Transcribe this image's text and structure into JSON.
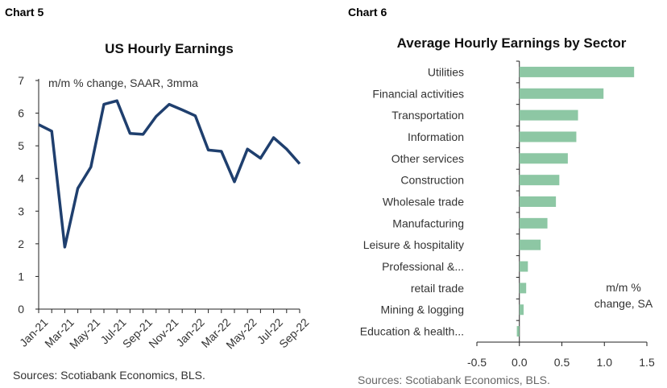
{
  "left": {
    "heading": "Chart 5",
    "source": "Sources: Scotiabank Economics, BLS."
  },
  "right": {
    "heading": "Chart 6",
    "source": "Sources: Scotiabank Economics, BLS."
  },
  "colors": {
    "line": "#1f3f6e",
    "bar": "#8dc7a4",
    "axis": "#222222"
  },
  "chart_data": [
    {
      "type": "line",
      "title": "US Hourly Earnings",
      "annotation": "m/m % change, SAAR, 3mma",
      "ylim": [
        0,
        7
      ],
      "yticks": [
        "0",
        "1",
        "2",
        "3",
        "4",
        "5",
        "6",
        "7"
      ],
      "x_tick_labels": [
        "Jan-21",
        "Mar-21",
        "May-21",
        "Jul-21",
        "Sep-21",
        "Nov-21",
        "Jan-22",
        "Mar-22",
        "May-22",
        "Jul-22",
        "Sep-22"
      ],
      "x": [
        "Jan-21",
        "Feb-21",
        "Mar-21",
        "Apr-21",
        "May-21",
        "Jun-21",
        "Jul-21",
        "Aug-21",
        "Sep-21",
        "Oct-21",
        "Nov-21",
        "Dec-21",
        "Jan-22",
        "Feb-22",
        "Mar-22",
        "Apr-22",
        "May-22",
        "Jun-22",
        "Jul-22",
        "Aug-22",
        "Sep-22"
      ],
      "series": [
        {
          "values": [
            5.65,
            5.45,
            1.9,
            3.7,
            4.35,
            6.27,
            6.38,
            5.38,
            5.35,
            5.9,
            6.27,
            6.1,
            5.92,
            4.87,
            4.83,
            3.9,
            4.9,
            4.62,
            5.25,
            4.9,
            4.45
          ]
        }
      ],
      "grid": false
    },
    {
      "type": "bar",
      "orientation": "horizontal",
      "title": "Average Hourly Earnings by Sector",
      "annotation_line1": "m/m %",
      "annotation_line2": "change, SA",
      "categories": [
        "Utilities",
        "Financial activities",
        "Transportation",
        "Information",
        "Other services",
        "Construction",
        "Wholesale trade",
        "Manufacturing",
        "Leisure & hospitality",
        "Professional &...",
        "retail trade",
        "Mining & logging",
        "Education & health..."
      ],
      "values": [
        1.35,
        0.99,
        0.69,
        0.67,
        0.57,
        0.47,
        0.43,
        0.33,
        0.25,
        0.1,
        0.08,
        0.05,
        -0.03
      ],
      "xlim": [
        -0.5,
        1.5
      ],
      "xticks": [
        "-0.5",
        "0.0",
        "0.5",
        "1.0",
        "1.5"
      ],
      "grid": false
    }
  ]
}
